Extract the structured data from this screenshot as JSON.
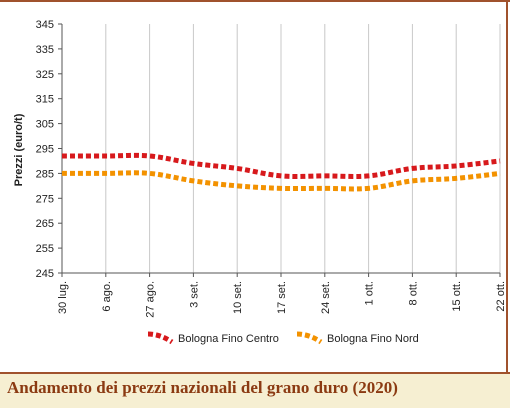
{
  "chart_data": {
    "type": "line",
    "title": "Andamento dei prezzi nazionali del grano duro (2020)",
    "xlabel": "",
    "ylabel": "Prezzi (euro/t)",
    "ylim": [
      245,
      345
    ],
    "yticks": [
      245,
      255,
      265,
      275,
      285,
      295,
      305,
      315,
      325,
      335,
      345
    ],
    "grid": "vertical",
    "legend_position": "bottom",
    "categories": [
      "30 lug.",
      "6 ago.",
      "27 ago.",
      "3 set.",
      "10 set.",
      "17 set.",
      "24 set.",
      "1 ott.",
      "8 ott.",
      "15 ott.",
      "22 ott."
    ],
    "series": [
      {
        "name": "Bologna Fino Centro",
        "color": "#d7191c",
        "values": [
          292,
          292,
          292,
          289,
          287,
          284,
          284,
          284,
          287,
          288,
          290
        ]
      },
      {
        "name": "Bologna Fino Nord",
        "color": "#f39200",
        "values": [
          285,
          285,
          285,
          282,
          280,
          279,
          279,
          279,
          282,
          283,
          285
        ]
      }
    ]
  }
}
